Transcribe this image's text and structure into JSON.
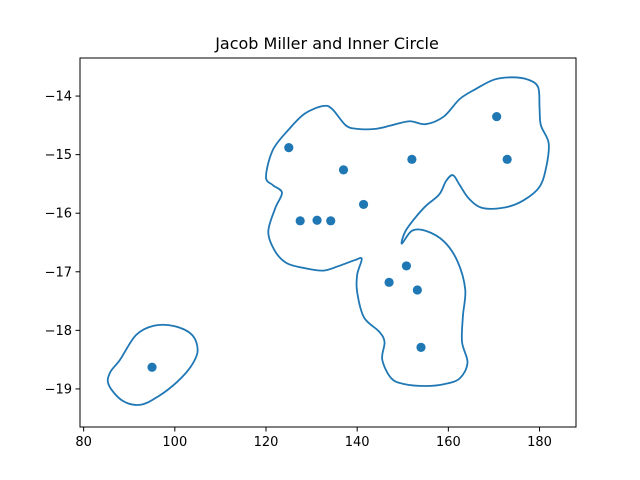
{
  "chart_data": {
    "type": "scatter",
    "title": "Jacob Miller and Inner Circle",
    "xlabel": "",
    "ylabel": "",
    "xlim": [
      79.2,
      188.0
    ],
    "ylim": [
      -19.65,
      -13.35
    ],
    "x_ticks": [
      80,
      100,
      120,
      140,
      160,
      180
    ],
    "y_ticks": [
      -19,
      -18,
      -17,
      -16,
      -15,
      -14
    ],
    "x_tick_labels": [
      "80",
      "100",
      "120",
      "140",
      "160",
      "180"
    ],
    "y_tick_labels": [
      "−19",
      "−18",
      "−17",
      "−16",
      "−15",
      "−14"
    ],
    "grid": false,
    "marker_color": "#1f77b4",
    "contour_color": "#1f77b4",
    "points": [
      {
        "x": 95.0,
        "y": -18.63
      },
      {
        "x": 125.0,
        "y": -14.88
      },
      {
        "x": 127.5,
        "y": -16.13
      },
      {
        "x": 131.2,
        "y": -16.12
      },
      {
        "x": 134.2,
        "y": -16.13
      },
      {
        "x": 137.0,
        "y": -15.26
      },
      {
        "x": 141.4,
        "y": -15.85
      },
      {
        "x": 147.0,
        "y": -17.18
      },
      {
        "x": 150.8,
        "y": -16.9
      },
      {
        "x": 152.0,
        "y": -15.08
      },
      {
        "x": 153.2,
        "y": -17.31
      },
      {
        "x": 154.0,
        "y": -18.29
      },
      {
        "x": 170.6,
        "y": -14.35
      },
      {
        "x": 172.9,
        "y": -15.08
      }
    ],
    "contours": [
      [
        [
          88.0,
          -18.5
        ],
        [
          91.5,
          -18.08
        ],
        [
          95.5,
          -17.92
        ],
        [
          100.0,
          -17.93
        ],
        [
          103.8,
          -18.08
        ],
        [
          105.0,
          -18.35
        ],
        [
          103.5,
          -18.62
        ],
        [
          100.5,
          -18.88
        ],
        [
          96.5,
          -19.12
        ],
        [
          92.5,
          -19.27
        ],
        [
          88.5,
          -19.2
        ],
        [
          85.5,
          -18.93
        ],
        [
          85.8,
          -18.72
        ]
      ],
      [
        [
          120.0,
          -15.38
        ],
        [
          121.5,
          -14.92
        ],
        [
          125.0,
          -14.57
        ],
        [
          128.5,
          -14.3
        ],
        [
          132.5,
          -14.17
        ],
        [
          134.5,
          -14.22
        ],
        [
          137.5,
          -14.5
        ],
        [
          140.0,
          -14.56
        ],
        [
          144.0,
          -14.56
        ],
        [
          147.5,
          -14.5
        ],
        [
          151.5,
          -14.43
        ],
        [
          155.0,
          -14.48
        ],
        [
          159.0,
          -14.35
        ],
        [
          162.5,
          -14.05
        ],
        [
          166.0,
          -13.88
        ],
        [
          170.0,
          -13.72
        ],
        [
          174.0,
          -13.68
        ],
        [
          177.5,
          -13.72
        ],
        [
          179.7,
          -13.85
        ],
        [
          180.0,
          -14.2
        ],
        [
          180.3,
          -14.5
        ],
        [
          182.0,
          -14.8
        ],
        [
          181.5,
          -15.2
        ],
        [
          180.0,
          -15.55
        ],
        [
          176.5,
          -15.78
        ],
        [
          172.5,
          -15.9
        ],
        [
          167.5,
          -15.91
        ],
        [
          164.5,
          -15.75
        ],
        [
          162.5,
          -15.52
        ],
        [
          161.0,
          -15.35
        ],
        [
          159.5,
          -15.45
        ],
        [
          158.0,
          -15.68
        ],
        [
          155.0,
          -15.88
        ],
        [
          152.5,
          -16.1
        ],
        [
          150.5,
          -16.32
        ],
        [
          149.8,
          -16.52
        ],
        [
          152.0,
          -16.3
        ],
        [
          155.0,
          -16.3
        ],
        [
          159.0,
          -16.48
        ],
        [
          162.0,
          -16.82
        ],
        [
          163.7,
          -17.3
        ],
        [
          163.2,
          -17.75
        ],
        [
          163.0,
          -18.2
        ],
        [
          164.2,
          -18.55
        ],
        [
          162.5,
          -18.82
        ],
        [
          159.0,
          -18.92
        ],
        [
          155.0,
          -18.95
        ],
        [
          150.5,
          -18.92
        ],
        [
          147.5,
          -18.82
        ],
        [
          145.5,
          -18.5
        ],
        [
          146.0,
          -18.2
        ],
        [
          144.8,
          -18.02
        ],
        [
          141.5,
          -17.78
        ],
        [
          140.0,
          -17.35
        ],
        [
          140.0,
          -17.05
        ],
        [
          141.0,
          -16.78
        ],
        [
          139.5,
          -16.8
        ],
        [
          136.0,
          -16.9
        ],
        [
          132.5,
          -16.98
        ],
        [
          128.0,
          -16.93
        ],
        [
          124.5,
          -16.85
        ],
        [
          122.0,
          -16.65
        ],
        [
          120.5,
          -16.32
        ],
        [
          122.0,
          -15.92
        ],
        [
          123.5,
          -15.65
        ],
        [
          121.5,
          -15.52
        ]
      ]
    ]
  }
}
